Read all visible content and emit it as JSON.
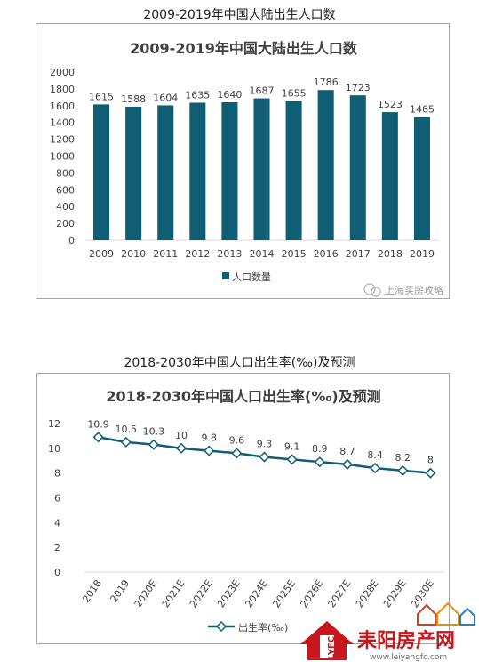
{
  "chart1_caption": "2009-2019年中国大陆出生人口数",
  "chart2_caption": "2018-2030年中国人口出生率(‰)及预测",
  "watermark_text": "上海买房攻略",
  "brand": {
    "name": "耒阳房产网",
    "badge": "LYFC",
    "url": "www.leiyangfc.com",
    "color": "#c8161d"
  },
  "chart_data": [
    {
      "type": "bar",
      "title": "2009-2019年中国大陆出生人口数",
      "categories": [
        "2009",
        "2010",
        "2011",
        "2012",
        "2013",
        "2014",
        "2015",
        "2016",
        "2017",
        "2018",
        "2019"
      ],
      "series": [
        {
          "name": "人口数量",
          "values": [
            1615,
            1588,
            1604,
            1635,
            1640,
            1687,
            1655,
            1786,
            1723,
            1523,
            1465
          ],
          "color": "#0f5e73"
        }
      ],
      "ylim": [
        0,
        2000
      ],
      "yticks": [
        0,
        200,
        400,
        600,
        800,
        1000,
        1200,
        1400,
        1600,
        1800,
        2000
      ],
      "xlabel": "",
      "ylabel": "",
      "grid": false,
      "legend_position": "bottom"
    },
    {
      "type": "line",
      "title": "2018-2030年中国人口出生率(‰)及预测",
      "categories": [
        "2018",
        "2019",
        "2020E",
        "2021E",
        "2022E",
        "2023E",
        "2024E",
        "2025E",
        "2026E",
        "2027E",
        "2028E",
        "2029E",
        "2030E"
      ],
      "series": [
        {
          "name": "出生率(‰)",
          "values": [
            10.9,
            10.5,
            10.3,
            10,
            9.8,
            9.6,
            9.3,
            9.1,
            8.9,
            8.7,
            8.4,
            8.2,
            8
          ],
          "color": "#0f5e73"
        }
      ],
      "ylim": [
        0,
        12
      ],
      "yticks": [
        0,
        2,
        4,
        6,
        8,
        10,
        12
      ],
      "xlabel": "",
      "ylabel": "",
      "grid": false,
      "legend_position": "bottom"
    }
  ]
}
